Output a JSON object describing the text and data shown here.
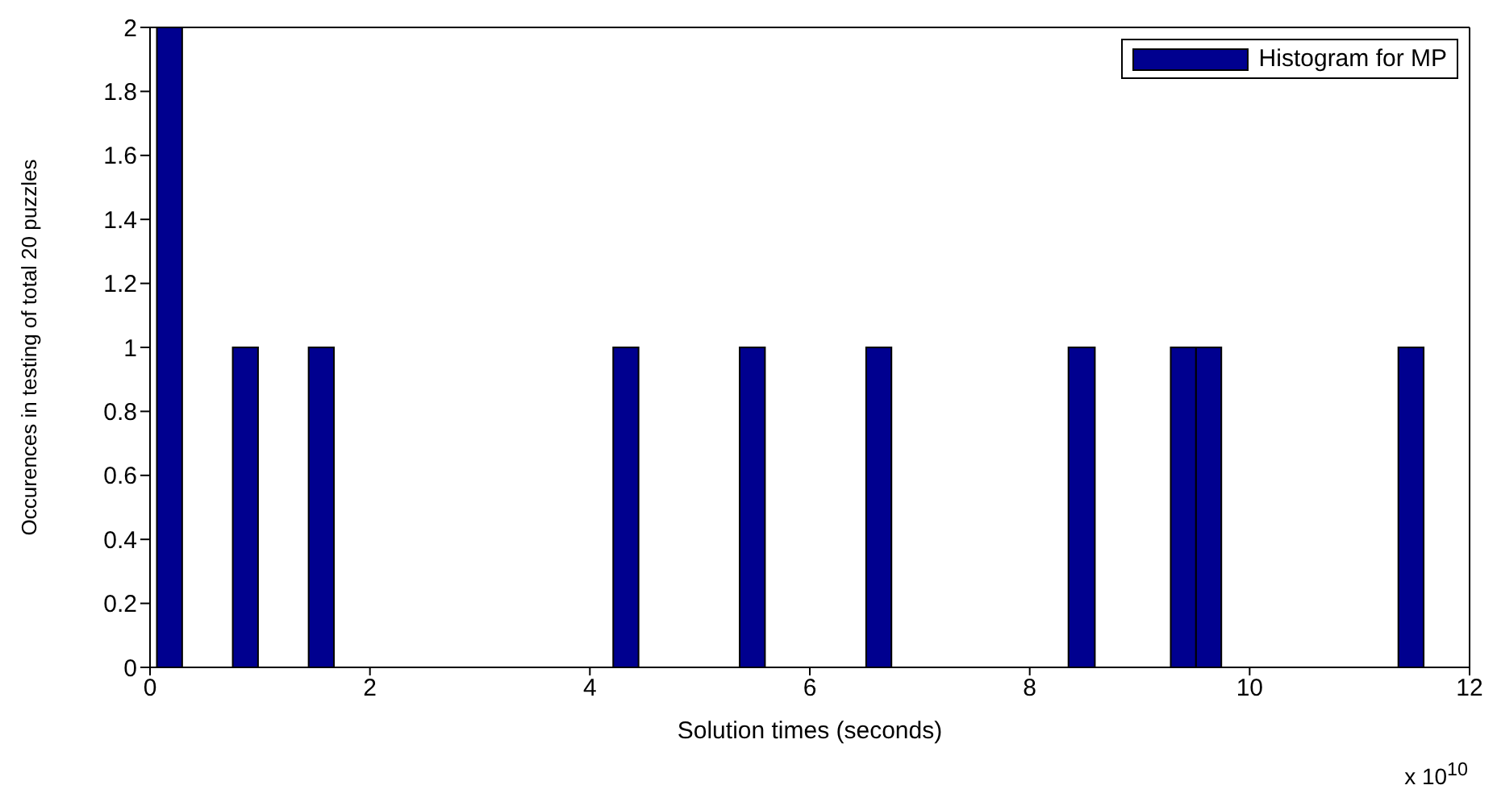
{
  "chart_data": {
    "type": "histogram",
    "xlabel": "Solution times (seconds)",
    "ylabel": "Occurences in testing of total 20 puzzles",
    "annotations": [
      "x 10$^{10}$"
    ],
    "bins": [
      0.06,
      0.29,
      0.75,
      0.98,
      1.44,
      1.67,
      4.21,
      4.44,
      5.36,
      5.59,
      6.51,
      6.74,
      8.35,
      8.59,
      9.28,
      9.51,
      9.74,
      11.35,
      11.58
    ],
    "series": [
      {
        "name": "Histogram for MP",
        "color": "#00008f",
        "values": [
          2,
          0,
          1,
          0,
          1,
          0,
          1,
          0,
          1,
          0,
          1,
          0,
          1,
          0,
          1,
          1,
          0,
          1
        ]
      }
    ],
    "xlim": [
      0,
      12
    ],
    "xticks": [
      0,
      2,
      4,
      6,
      8,
      10,
      12
    ],
    "ylim": [
      0,
      2
    ],
    "yticks": [
      0,
      0.2,
      0.4,
      0.6,
      0.8,
      1,
      1.2,
      1.4,
      1.6,
      1.8,
      2
    ],
    "legend": "top right"
  }
}
